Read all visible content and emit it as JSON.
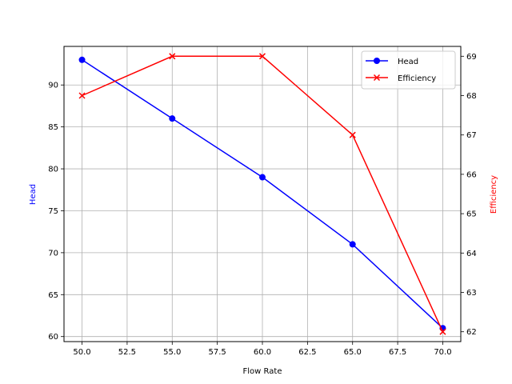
{
  "chart_data": {
    "type": "line",
    "title": "",
    "xlabel": "Flow Rate",
    "ylabel": "Head",
    "ylabel_right": "Efficiency",
    "x": [
      50,
      55,
      60,
      65,
      70
    ],
    "series": [
      {
        "name": "Head",
        "axis": "left",
        "color": "#0000ff",
        "marker": "circle",
        "values": [
          93,
          86,
          79,
          71,
          61
        ]
      },
      {
        "name": "Efficiency",
        "axis": "right",
        "color": "#ff0000",
        "marker": "x",
        "values": [
          68,
          69,
          69,
          67,
          62
        ]
      }
    ],
    "xlim": [
      49,
      71
    ],
    "ylim": [
      59.4,
      94.6
    ],
    "ylim_right": [
      61.75,
      69.25
    ],
    "x_ticks": [
      "50.0",
      "52.5",
      "55.0",
      "57.5",
      "60.0",
      "62.5",
      "65.0",
      "67.5",
      "70.0"
    ],
    "y_ticks": [
      "60",
      "65",
      "70",
      "75",
      "80",
      "85",
      "90"
    ],
    "y_ticks_right": [
      "62",
      "63",
      "64",
      "65",
      "66",
      "67",
      "68",
      "69"
    ],
    "grid": true,
    "legend_position": "upper right"
  }
}
